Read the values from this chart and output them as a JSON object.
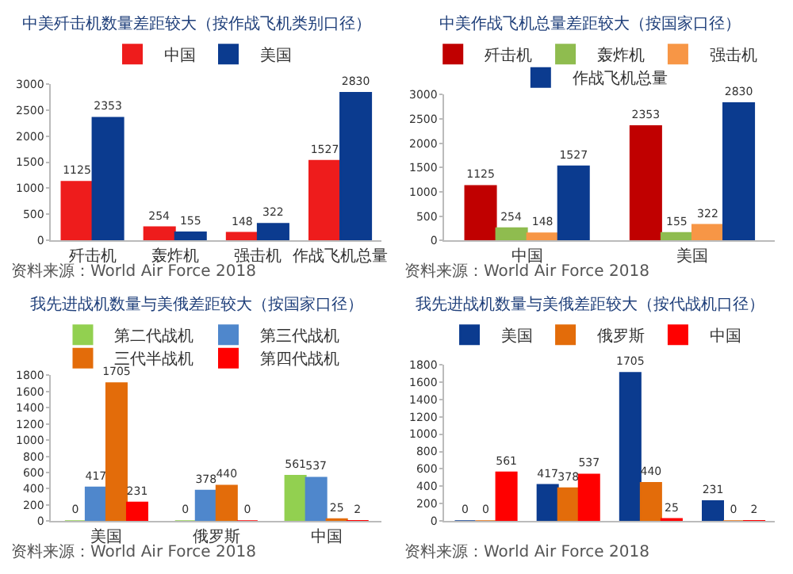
{
  "chart_data": [
    {
      "type": "bar",
      "title": "中美歼击机数量差距较大（按作战飞机类别口径）",
      "categories": [
        "歼击机",
        "轰炸机",
        "强击机",
        "作战飞机总量"
      ],
      "series": [
        {
          "name": "中国",
          "color": "#ee1c1c",
          "values": [
            1125,
            254,
            148,
            1527
          ]
        },
        {
          "name": "美国",
          "color": "#0b3b8f",
          "values": [
            2353,
            155,
            322,
            2830
          ]
        }
      ],
      "ylim": [
        0,
        3000
      ],
      "yticks": [
        0,
        500,
        1000,
        1500,
        2000,
        2500,
        3000
      ],
      "data_labels": true,
      "legend": "top",
      "annotations": [
        "资料来源：World Air Force 2018"
      ]
    },
    {
      "type": "bar",
      "title": "中美作战飞机总量差距较大（按国家口径）",
      "categories": [
        "中国",
        "美国"
      ],
      "series": [
        {
          "name": "歼击机",
          "color": "#c00000",
          "values": [
            1125,
            2353
          ]
        },
        {
          "name": "轰炸机",
          "color": "#8fbc4f",
          "values": [
            254,
            155
          ]
        },
        {
          "name": "强击机",
          "color": "#f79646",
          "values": [
            148,
            322
          ]
        },
        {
          "name": "作战飞机总量",
          "color": "#0b3b8f",
          "values": [
            1527,
            2830
          ]
        }
      ],
      "ylim": [
        0,
        3000
      ],
      "yticks": [
        0,
        500,
        1000,
        1500,
        2000,
        2500,
        3000
      ],
      "data_labels": true,
      "legend": "top",
      "annotations": [
        "资料来源：World Air Force 2018"
      ]
    },
    {
      "type": "bar",
      "title": "我先进战机数量与美俄差距较大（按国家口径）",
      "categories": [
        "美国",
        "俄罗斯",
        "中国"
      ],
      "series": [
        {
          "name": "第二代战机",
          "color": "#92d050",
          "values": [
            0,
            0,
            561
          ]
        },
        {
          "name": "第三代战机",
          "color": "#4f87cc",
          "values": [
            417,
            378,
            537
          ]
        },
        {
          "name": "三代半战机",
          "color": "#e36c0a",
          "values": [
            1705,
            440,
            25
          ]
        },
        {
          "name": "第四代战机",
          "color": "#ff0000",
          "values": [
            231,
            0,
            2
          ]
        }
      ],
      "ylim": [
        0,
        1800
      ],
      "yticks": [
        0,
        200,
        400,
        600,
        800,
        1000,
        1200,
        1400,
        1600,
        1800
      ],
      "data_labels": true,
      "legend": "top",
      "annotations": [
        "资料来源：World Air Force 2018"
      ]
    },
    {
      "type": "bar",
      "title": "我先进战机数量与美俄差距较大（按代战机口径）",
      "categories": [
        null,
        null,
        null,
        null
      ],
      "series": [
        {
          "name": "美国",
          "color": "#0b3b8f",
          "values": [
            0,
            417,
            1705,
            231
          ]
        },
        {
          "name": "俄罗斯",
          "color": "#e36c0a",
          "values": [
            0,
            378,
            440,
            0
          ]
        },
        {
          "name": "中国",
          "color": "#ff0000",
          "values": [
            561,
            537,
            25,
            2
          ]
        }
      ],
      "ylim": [
        0,
        1800
      ],
      "yticks": [
        0,
        200,
        400,
        600,
        800,
        1000,
        1200,
        1400,
        1600,
        1800
      ],
      "data_labels": true,
      "legend": "top",
      "annotations": [
        "资料来源：World Air Force 2018"
      ]
    }
  ]
}
